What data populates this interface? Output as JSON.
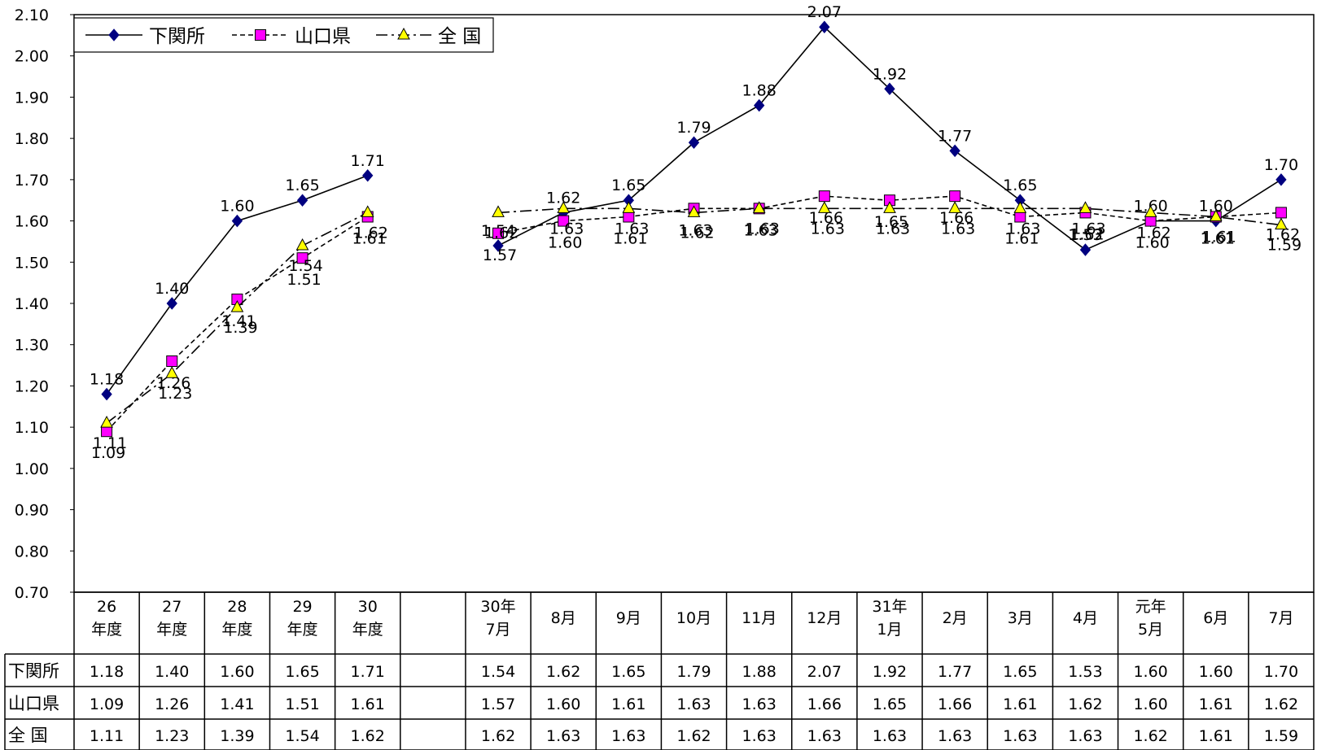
{
  "chart_data": {
    "type": "line",
    "ylim": [
      0.7,
      2.1
    ],
    "yticks": [
      "0.70",
      "0.80",
      "0.90",
      "1.00",
      "1.10",
      "1.20",
      "1.30",
      "1.40",
      "1.50",
      "1.60",
      "1.70",
      "1.80",
      "1.90",
      "2.00",
      "2.10"
    ],
    "categories": [
      [
        "26",
        "年度"
      ],
      [
        "27",
        "年度"
      ],
      [
        "28",
        "年度"
      ],
      [
        "29",
        "年度"
      ],
      [
        "30",
        "年度"
      ],
      [
        "",
        ""
      ],
      [
        "30年",
        "7月"
      ],
      [
        "8月",
        ""
      ],
      [
        "9月",
        ""
      ],
      [
        "10月",
        ""
      ],
      [
        "11月",
        ""
      ],
      [
        "12月",
        ""
      ],
      [
        "31年",
        "1月"
      ],
      [
        "2月",
        ""
      ],
      [
        "3月",
        ""
      ],
      [
        "4月",
        ""
      ],
      [
        "元年",
        "5月"
      ],
      [
        "6月",
        ""
      ],
      [
        "7月",
        ""
      ]
    ],
    "legend": [
      "下関所",
      "山口県",
      "全 国"
    ],
    "series": [
      {
        "name": "下関所",
        "color": "#000080",
        "marker": "diamond",
        "line_style": "solid",
        "values": [
          1.18,
          1.4,
          1.6,
          1.65,
          1.71,
          null,
          1.54,
          1.62,
          1.65,
          1.79,
          1.88,
          2.07,
          1.92,
          1.77,
          1.65,
          1.53,
          1.6,
          1.6,
          1.7
        ],
        "labels": [
          "1.18",
          "1.40",
          "1.60",
          "1.65",
          "1.71",
          "",
          "1.54",
          "1.62",
          "1.65",
          "1.79",
          "1.88",
          "2.07",
          "1.92",
          "1.77",
          "1.65",
          "1.53",
          "1.60",
          "1.60",
          "1.70"
        ]
      },
      {
        "name": "山口県",
        "color": "#ff00ff",
        "marker": "square",
        "line_style": "dashed",
        "values": [
          1.09,
          1.26,
          1.41,
          1.51,
          1.61,
          null,
          1.57,
          1.6,
          1.61,
          1.63,
          1.63,
          1.66,
          1.65,
          1.66,
          1.61,
          1.62,
          1.6,
          1.61,
          1.62
        ],
        "labels": [
          "1.09",
          "1.26",
          "1.41",
          "1.51",
          "1.61",
          "",
          "1.57",
          "1.60",
          "1.61",
          "1.63",
          "1.63",
          "1.66",
          "1.65",
          "1.66",
          "1.61",
          "1.62",
          "1.60",
          "1.61",
          "1.62"
        ]
      },
      {
        "name": "全 国",
        "color": "#ffff00",
        "marker": "triangle",
        "line_style": "dashdot",
        "values": [
          1.11,
          1.23,
          1.39,
          1.54,
          1.62,
          null,
          1.62,
          1.63,
          1.63,
          1.62,
          1.63,
          1.63,
          1.63,
          1.63,
          1.63,
          1.63,
          1.62,
          1.61,
          1.59
        ],
        "labels": [
          "1.11",
          "1.23",
          "1.39",
          "1.54",
          "1.62",
          "",
          "1.62",
          "1.63",
          "1.63",
          "1.62",
          "1.63",
          "1.63",
          "1.63",
          "1.63",
          "1.63",
          "1.63",
          "1.62",
          "1.61",
          "1.59"
        ]
      }
    ]
  }
}
